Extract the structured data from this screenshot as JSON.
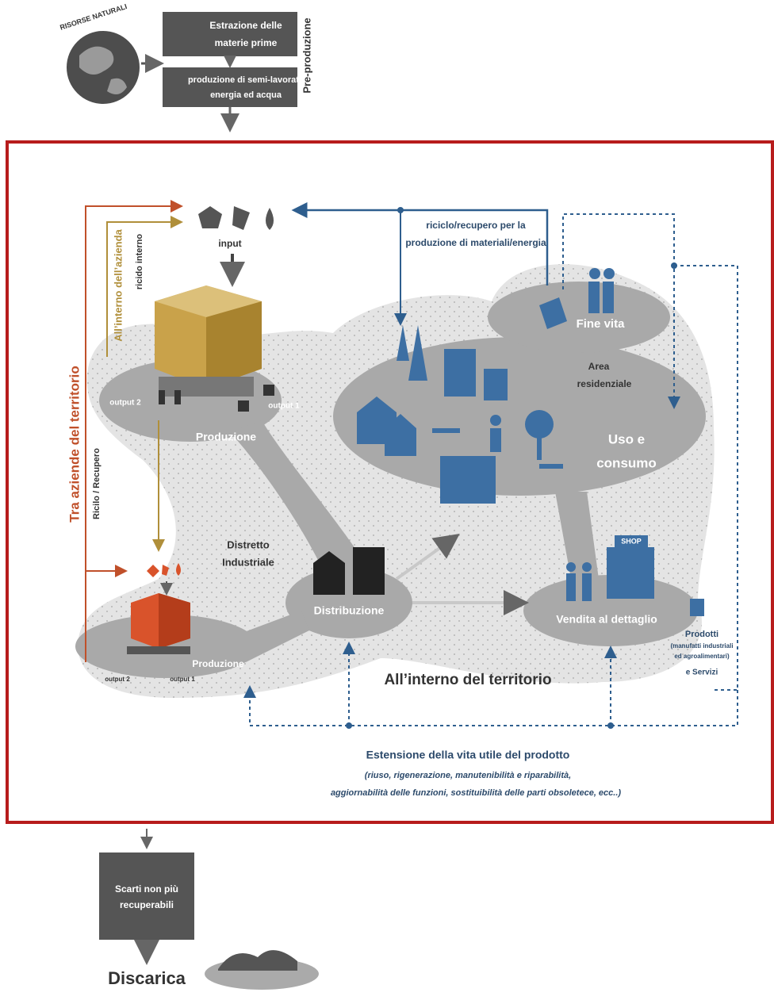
{
  "pre_production": {
    "resources_label": "RISORSE NATURALI",
    "steps": [
      [
        "Estrazione delle",
        "materie prime"
      ],
      [
        "produzione di semi-lavorati,",
        "energia ed acqua"
      ]
    ],
    "label": "Pre-produzione"
  },
  "territory": {
    "input": "input",
    "recycling": [
      "riciclo/recupero per la",
      "produzione di materiali/energia"
    ],
    "inside_company": "All’interno dell’azienda",
    "internal_recycling": "ricido interno",
    "between_companies": "Tra aziende del territorio",
    "recycle_recovery": "Ricilo / Recupero",
    "production_top": {
      "output_2": "output 2",
      "output_1": "output 1",
      "label": "Produzione"
    },
    "end_of_life": "Fine vita",
    "residential": [
      "Area",
      "residenziale"
    ],
    "use": [
      "Uso e",
      "consumo"
    ],
    "district": [
      "Distretto",
      "Industriale"
    ],
    "distribution": "Distribuzione",
    "shop": "SHOP",
    "retail": "Vendita al dettaglio",
    "products": [
      "Prodotti",
      "(manufatti industriali",
      "ed agroalimentari)",
      "e Servizi"
    ],
    "production_bottom": {
      "output_2": "output 2",
      "output_1": "output 1",
      "label": "Produzione"
    },
    "inside_territory": "All’interno del territorio",
    "extension": {
      "title": "Estensione della vita utile del prodotto",
      "lines": [
        "(riuso, rigenerazione, manutenibilità e riparabilità,",
        "aggiornabilità delle funzioni, sostituibilità delle parti obsoletece, ecc..)"
      ]
    }
  },
  "disposal": {
    "waste": [
      "Scarti non più",
      "recuperabili"
    ],
    "landfill": "Discarica"
  }
}
